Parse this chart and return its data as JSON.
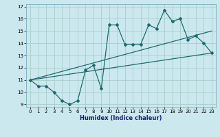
{
  "xlabel": "Humidex (Indice chaleur)",
  "bg_color": "#cce8ef",
  "grid_color": "#aacccc",
  "line_color": "#1a6b6b",
  "xlim": [
    -0.5,
    23.5
  ],
  "ylim": [
    8.8,
    17.2
  ],
  "yticks": [
    9,
    10,
    11,
    12,
    13,
    14,
    15,
    16,
    17
  ],
  "xticks": [
    0,
    1,
    2,
    3,
    4,
    5,
    6,
    7,
    8,
    9,
    10,
    11,
    12,
    13,
    14,
    15,
    16,
    17,
    18,
    19,
    20,
    21,
    22,
    23
  ],
  "line1_x": [
    0,
    1,
    2,
    3,
    4,
    5,
    6,
    7,
    8,
    9,
    10,
    11,
    12,
    13,
    14,
    15,
    16,
    17,
    18,
    19,
    20,
    21,
    22,
    23
  ],
  "line1_y": [
    11.0,
    10.5,
    10.5,
    10.0,
    9.3,
    9.0,
    9.3,
    11.8,
    12.2,
    10.3,
    15.5,
    15.5,
    13.9,
    13.9,
    13.9,
    15.5,
    15.2,
    16.7,
    15.8,
    16.0,
    14.3,
    14.6,
    14.0,
    13.2
  ],
  "line2_x": [
    0,
    23
  ],
  "line2_y": [
    11.0,
    13.2
  ],
  "line3_x": [
    0,
    23
  ],
  "line3_y": [
    11.0,
    15.0
  ],
  "tick_fontsize": 5.0,
  "xlabel_fontsize": 6.0
}
